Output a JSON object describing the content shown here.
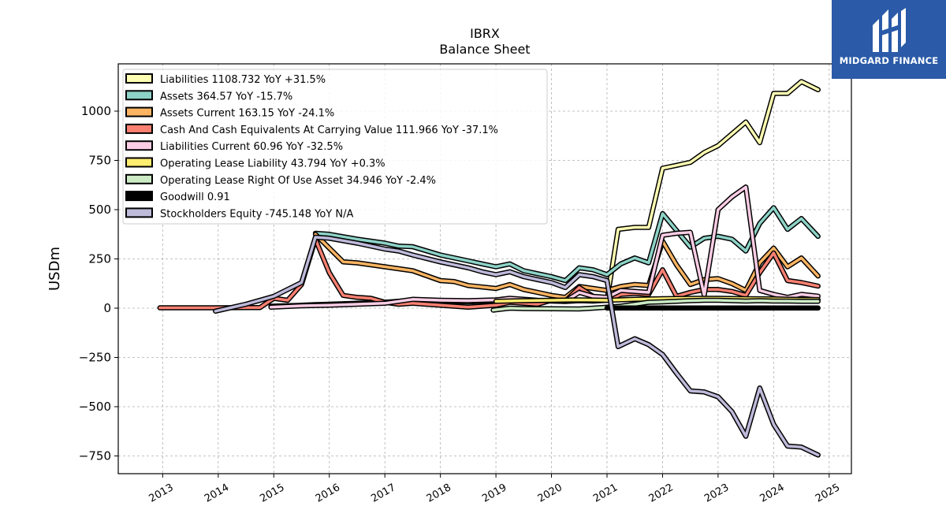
{
  "chart_data": {
    "type": "line",
    "title": "IBRX",
    "subtitle": "Balance  Sheet",
    "ylabel": "USDm",
    "xlabel": "",
    "ylim": [
      -840,
      1240
    ],
    "xlim": [
      2012.2,
      2025.4
    ],
    "yticks": [
      -750,
      -500,
      -250,
      0,
      250,
      500,
      750,
      1000
    ],
    "ytick_labels": [
      "−750",
      "−500",
      "−250",
      "0",
      "250",
      "500",
      "750",
      "1000"
    ],
    "xticks": [
      2013,
      2014,
      2015,
      2016,
      2017,
      2018,
      2019,
      2020,
      2021,
      2022,
      2023,
      2024,
      2025
    ],
    "xtick_labels": [
      "2013",
      "2014",
      "2015",
      "2016",
      "2017",
      "2018",
      "2019",
      "2020",
      "2021",
      "2022",
      "2023",
      "2024",
      "2025"
    ],
    "grid": true,
    "legend_position": "upper-left",
    "series": [
      {
        "name": "Liabilities",
        "legend": "Liabilities  1108.732 YoY +31.5%",
        "color": "#ffffb3",
        "points": [
          [
            2014.95,
            10
          ],
          [
            2015.5,
            15
          ],
          [
            2015.75,
            18
          ],
          [
            2016,
            20
          ],
          [
            2016.5,
            25
          ],
          [
            2017,
            30
          ],
          [
            2017.5,
            40
          ],
          [
            2018,
            35
          ],
          [
            2018.5,
            32
          ],
          [
            2019,
            38
          ],
          [
            2019.25,
            42
          ],
          [
            2019.5,
            40
          ],
          [
            2019.75,
            38
          ],
          [
            2020,
            36
          ],
          [
            2020.25,
            34
          ],
          [
            2020.5,
            38
          ],
          [
            2020.75,
            36
          ],
          [
            2021,
            40
          ],
          [
            2021.2,
            400
          ],
          [
            2021.5,
            410
          ],
          [
            2021.75,
            410
          ],
          [
            2022,
            710
          ],
          [
            2022.25,
            725
          ],
          [
            2022.5,
            740
          ],
          [
            2022.75,
            790
          ],
          [
            2023,
            825
          ],
          [
            2023.25,
            885
          ],
          [
            2023.5,
            945
          ],
          [
            2023.75,
            840
          ],
          [
            2024,
            1090
          ],
          [
            2024.25,
            1090
          ],
          [
            2024.5,
            1150
          ],
          [
            2024.8,
            1108.732
          ]
        ]
      },
      {
        "name": "Assets",
        "legend": "Assets  364.57 YoY -15.7%",
        "color": "#8dd3c7",
        "points": [
          [
            2015.75,
            380
          ],
          [
            2016,
            375
          ],
          [
            2016.5,
            350
          ],
          [
            2017,
            330
          ],
          [
            2017.25,
            315
          ],
          [
            2017.5,
            312
          ],
          [
            2018,
            270
          ],
          [
            2018.5,
            240
          ],
          [
            2018.75,
            225
          ],
          [
            2019,
            210
          ],
          [
            2019.25,
            225
          ],
          [
            2019.5,
            190
          ],
          [
            2019.75,
            175
          ],
          [
            2020,
            160
          ],
          [
            2020.25,
            140
          ],
          [
            2020.5,
            205
          ],
          [
            2020.75,
            195
          ],
          [
            2021,
            170
          ],
          [
            2021.25,
            225
          ],
          [
            2021.5,
            255
          ],
          [
            2021.75,
            230
          ],
          [
            2022,
            480
          ],
          [
            2022.25,
            395
          ],
          [
            2022.5,
            310
          ],
          [
            2022.75,
            355
          ],
          [
            2023,
            365
          ],
          [
            2023.25,
            350
          ],
          [
            2023.5,
            290
          ],
          [
            2023.75,
            430
          ],
          [
            2024,
            510
          ],
          [
            2024.25,
            400
          ],
          [
            2024.5,
            455
          ],
          [
            2024.8,
            364.57
          ]
        ]
      },
      {
        "name": "Assets Current",
        "legend": "Assets Current  163.15 YoY -24.1%",
        "color": "#fdb462",
        "points": [
          [
            2015.75,
            375
          ],
          [
            2016.25,
            235
          ],
          [
            2016.5,
            230
          ],
          [
            2017,
            210
          ],
          [
            2017.5,
            190
          ],
          [
            2018,
            140
          ],
          [
            2018.25,
            135
          ],
          [
            2018.5,
            115
          ],
          [
            2019,
            100
          ],
          [
            2019.25,
            120
          ],
          [
            2019.5,
            95
          ],
          [
            2019.75,
            80
          ],
          [
            2020,
            65
          ],
          [
            2020.25,
            55
          ],
          [
            2020.5,
            110
          ],
          [
            2020.75,
            100
          ],
          [
            2021,
            90
          ],
          [
            2021.25,
            110
          ],
          [
            2021.5,
            120
          ],
          [
            2021.75,
            115
          ],
          [
            2022,
            340
          ],
          [
            2022.25,
            220
          ],
          [
            2022.5,
            120
          ],
          [
            2022.75,
            145
          ],
          [
            2023,
            150
          ],
          [
            2023.25,
            125
          ],
          [
            2023.5,
            90
          ],
          [
            2023.75,
            230
          ],
          [
            2024,
            305
          ],
          [
            2024.25,
            210
          ],
          [
            2024.5,
            255
          ],
          [
            2024.8,
            163.15
          ]
        ]
      },
      {
        "name": "Cash And Cash Equivalents At Carrying Value",
        "legend": "Cash And Cash Equivalents At Carrying Value  111.966 YoY -37.1%",
        "color": "#fb8072",
        "points": [
          [
            2012.95,
            2
          ],
          [
            2013.5,
            2
          ],
          [
            2014,
            2
          ],
          [
            2014.5,
            3
          ],
          [
            2014.75,
            3
          ],
          [
            2015,
            50
          ],
          [
            2015.25,
            40
          ],
          [
            2015.5,
            120
          ],
          [
            2015.75,
            350
          ],
          [
            2016,
            180
          ],
          [
            2016.25,
            65
          ],
          [
            2016.5,
            55
          ],
          [
            2016.75,
            50
          ],
          [
            2017,
            30
          ],
          [
            2017.25,
            20
          ],
          [
            2017.5,
            25
          ],
          [
            2018,
            15
          ],
          [
            2018.5,
            5
          ],
          [
            2019,
            15
          ],
          [
            2019.25,
            30
          ],
          [
            2019.5,
            25
          ],
          [
            2019.75,
            20
          ],
          [
            2020,
            40
          ],
          [
            2020.25,
            35
          ],
          [
            2020.5,
            105
          ],
          [
            2020.75,
            60
          ],
          [
            2021,
            40
          ],
          [
            2021.25,
            70
          ],
          [
            2021.5,
            75
          ],
          [
            2021.75,
            70
          ],
          [
            2022,
            195
          ],
          [
            2022.25,
            60
          ],
          [
            2022.5,
            80
          ],
          [
            2022.75,
            95
          ],
          [
            2023,
            95
          ],
          [
            2023.25,
            85
          ],
          [
            2023.5,
            65
          ],
          [
            2023.75,
            180
          ],
          [
            2024,
            280
          ],
          [
            2024.25,
            140
          ],
          [
            2024.5,
            130
          ],
          [
            2024.8,
            111.966
          ]
        ]
      },
      {
        "name": "Liabilities Current",
        "legend": "Liabilities Current  60.96 YoY -32.5%",
        "color": "#fccde5",
        "points": [
          [
            2014.95,
            5
          ],
          [
            2015.5,
            12
          ],
          [
            2016,
            15
          ],
          [
            2016.5,
            20
          ],
          [
            2017,
            25
          ],
          [
            2017.5,
            45
          ],
          [
            2018,
            40
          ],
          [
            2018.5,
            38
          ],
          [
            2019,
            42
          ],
          [
            2019.25,
            50
          ],
          [
            2019.5,
            45
          ],
          [
            2019.75,
            40
          ],
          [
            2020,
            38
          ],
          [
            2020.25,
            36
          ],
          [
            2020.5,
            80
          ],
          [
            2020.75,
            60
          ],
          [
            2021,
            55
          ],
          [
            2021.25,
            90
          ],
          [
            2021.5,
            85
          ],
          [
            2021.75,
            80
          ],
          [
            2022,
            370
          ],
          [
            2022.25,
            380
          ],
          [
            2022.5,
            385
          ],
          [
            2022.75,
            65
          ],
          [
            2023,
            500
          ],
          [
            2023.25,
            565
          ],
          [
            2023.5,
            615
          ],
          [
            2023.75,
            90
          ],
          [
            2024,
            70
          ],
          [
            2024.25,
            55
          ],
          [
            2024.5,
            70
          ],
          [
            2024.8,
            60.96
          ]
        ]
      },
      {
        "name": "Operating Lease Liability",
        "legend": "Operating Lease Liability  43.794 YoY +0.3%",
        "color": "#ffed6f",
        "points": [
          [
            2019,
            35
          ],
          [
            2019.5,
            38
          ],
          [
            2020,
            40
          ],
          [
            2020.5,
            42
          ],
          [
            2021,
            40
          ],
          [
            2021.5,
            45
          ],
          [
            2022,
            48
          ],
          [
            2022.5,
            50
          ],
          [
            2023,
            50
          ],
          [
            2023.5,
            48
          ],
          [
            2024,
            47
          ],
          [
            2024.5,
            44
          ],
          [
            2024.8,
            43.794
          ]
        ]
      },
      {
        "name": "Operating Lease Right Of Use Asset",
        "legend": "Operating Lease Right Of Use Asset  34.946 YoY -2.4%",
        "color": "#ccebc5",
        "points": [
          [
            2018.95,
            -10
          ],
          [
            2019.25,
            0
          ],
          [
            2019.5,
            -2
          ],
          [
            2020,
            -3
          ],
          [
            2020.5,
            -4
          ],
          [
            2020.75,
            0
          ],
          [
            2021,
            5
          ],
          [
            2021.25,
            10
          ],
          [
            2021.5,
            20
          ],
          [
            2021.75,
            30
          ],
          [
            2022,
            32
          ],
          [
            2022.25,
            35
          ],
          [
            2022.5,
            38
          ],
          [
            2022.75,
            40
          ],
          [
            2023,
            40
          ],
          [
            2023.25,
            38
          ],
          [
            2023.5,
            36
          ],
          [
            2023.75,
            38
          ],
          [
            2024,
            36
          ],
          [
            2024.25,
            36
          ],
          [
            2024.5,
            35
          ],
          [
            2024.8,
            34.946
          ]
        ]
      },
      {
        "name": "Goodwill",
        "legend": "Goodwill  0.91",
        "color": "#000000",
        "points": [
          [
            2021,
            0.91
          ],
          [
            2024.8,
            0.91
          ]
        ]
      },
      {
        "name": "Stockholders Equity",
        "legend": "Stockholders Equity  -745.148 YoY N/A",
        "color": "#bebada",
        "points": [
          [
            2013.95,
            -15
          ],
          [
            2014.5,
            20
          ],
          [
            2015,
            60
          ],
          [
            2015.5,
            130
          ],
          [
            2015.75,
            360
          ],
          [
            2016,
            355
          ],
          [
            2016.5,
            330
          ],
          [
            2017,
            300
          ],
          [
            2017.25,
            290
          ],
          [
            2017.5,
            270
          ],
          [
            2018,
            235
          ],
          [
            2018.5,
            205
          ],
          [
            2018.75,
            185
          ],
          [
            2019,
            170
          ],
          [
            2019.25,
            185
          ],
          [
            2019.5,
            160
          ],
          [
            2019.75,
            145
          ],
          [
            2020,
            130
          ],
          [
            2020.25,
            105
          ],
          [
            2020.5,
            170
          ],
          [
            2020.75,
            160
          ],
          [
            2021,
            140
          ],
          [
            2021.2,
            -195
          ],
          [
            2021.5,
            -155
          ],
          [
            2021.75,
            -185
          ],
          [
            2022,
            -235
          ],
          [
            2022.25,
            -330
          ],
          [
            2022.5,
            -420
          ],
          [
            2022.75,
            -425
          ],
          [
            2023,
            -450
          ],
          [
            2023.25,
            -525
          ],
          [
            2023.5,
            -650
          ],
          [
            2023.75,
            -405
          ],
          [
            2024,
            -590
          ],
          [
            2024.25,
            -700
          ],
          [
            2024.5,
            -705
          ],
          [
            2024.8,
            -745.148
          ]
        ]
      }
    ]
  },
  "logo": {
    "text": "MIDGARD FINANCE",
    "background": "#2a5aa8"
  }
}
